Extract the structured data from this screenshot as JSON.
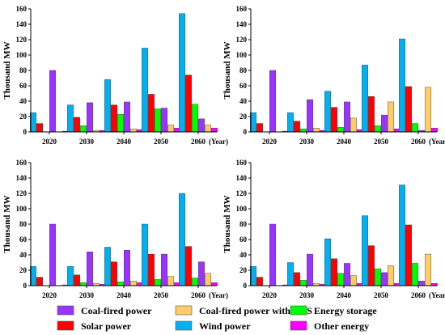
{
  "chart_data": [
    {
      "type": "bar",
      "ylabel": "Thousand MW",
      "xunit": "(Year)",
      "ylim": [
        0,
        160
      ],
      "yticks": [
        0,
        20,
        40,
        60,
        80,
        100,
        120,
        140,
        160
      ],
      "categories": [
        "2020",
        "2030",
        "2040",
        "2050",
        "2060"
      ],
      "series": [
        {
          "key": "wind",
          "values": [
            25,
            35,
            68,
            109,
            154
          ]
        },
        {
          "key": "solar",
          "values": [
            11,
            19,
            35,
            49,
            74
          ]
        },
        {
          "key": "storage",
          "values": [
            0,
            8,
            23,
            30,
            36
          ]
        },
        {
          "key": "coal",
          "values": [
            80,
            38,
            39,
            31,
            17
          ]
        },
        {
          "key": "coal_ccs",
          "values": [
            0,
            2,
            4,
            9,
            9
          ]
        },
        {
          "key": "other",
          "values": [
            1,
            2,
            3,
            5,
            5
          ]
        }
      ]
    },
    {
      "type": "bar",
      "ylabel": "Thousand MW",
      "xunit": "(Year)",
      "ylim": [
        0,
        160
      ],
      "yticks": [
        0,
        20,
        40,
        60,
        80,
        100,
        120,
        140,
        160
      ],
      "categories": [
        "2020",
        "2030",
        "2040",
        "2050",
        "2060"
      ],
      "series": [
        {
          "key": "wind",
          "values": [
            25,
            25,
            53,
            87,
            121
          ]
        },
        {
          "key": "solar",
          "values": [
            11,
            14,
            32,
            46,
            59
          ]
        },
        {
          "key": "storage",
          "values": [
            0,
            4,
            6,
            8,
            11
          ]
        },
        {
          "key": "coal",
          "values": [
            80,
            42,
            39,
            22,
            2
          ]
        },
        {
          "key": "coal_ccs",
          "values": [
            0,
            5,
            18,
            39,
            58
          ]
        },
        {
          "key": "other",
          "values": [
            1,
            2,
            3,
            4,
            5
          ]
        }
      ]
    },
    {
      "type": "bar",
      "ylabel": "Thousand MW",
      "xunit": "(Year)",
      "ylim": [
        0,
        160
      ],
      "yticks": [
        0,
        20,
        40,
        60,
        80,
        100,
        120,
        140,
        160
      ],
      "categories": [
        "2020",
        "2030",
        "2040",
        "2050",
        "2060"
      ],
      "series": [
        {
          "key": "wind",
          "values": [
            25,
            25,
            50,
            80,
            120
          ]
        },
        {
          "key": "solar",
          "values": [
            11,
            14,
            31,
            41,
            51
          ]
        },
        {
          "key": "storage",
          "values": [
            0,
            4,
            5,
            8,
            10
          ]
        },
        {
          "key": "coal",
          "values": [
            80,
            44,
            46,
            41,
            31
          ]
        },
        {
          "key": "coal_ccs",
          "values": [
            0,
            3,
            6,
            12,
            16
          ]
        },
        {
          "key": "other",
          "values": [
            1,
            2,
            4,
            4,
            4
          ]
        }
      ]
    },
    {
      "type": "bar",
      "ylabel": "Thousand MW",
      "xunit": "(Year)",
      "ylim": [
        0,
        160
      ],
      "yticks": [
        0,
        20,
        40,
        60,
        80,
        100,
        120,
        140,
        160
      ],
      "categories": [
        "2020",
        "2030",
        "2040",
        "2050",
        "2060"
      ],
      "series": [
        {
          "key": "wind",
          "values": [
            25,
            30,
            61,
            91,
            131
          ]
        },
        {
          "key": "solar",
          "values": [
            11,
            17,
            35,
            52,
            79
          ]
        },
        {
          "key": "storage",
          "values": [
            0,
            7,
            16,
            22,
            29
          ]
        },
        {
          "key": "coal",
          "values": [
            80,
            41,
            29,
            17,
            6
          ]
        },
        {
          "key": "coal_ccs",
          "values": [
            0,
            3,
            13,
            26,
            41
          ]
        },
        {
          "key": "other",
          "values": [
            1,
            2,
            3,
            3,
            3
          ]
        }
      ]
    }
  ],
  "legend": [
    {
      "key": "coal",
      "label": "Coal-fired power",
      "color": "#9933ff"
    },
    {
      "key": "coal_ccs",
      "label": "Coal-fired power with CCS",
      "color": "#ffcc66"
    },
    {
      "key": "storage",
      "label": "Energy storage",
      "color": "#00ff00"
    },
    {
      "key": "solar",
      "label": "Solar power",
      "color": "#ff0000"
    },
    {
      "key": "wind",
      "label": "Wind power",
      "color": "#00b0f0"
    },
    {
      "key": "other",
      "label": "Other energy",
      "color": "#ff00ff"
    }
  ]
}
